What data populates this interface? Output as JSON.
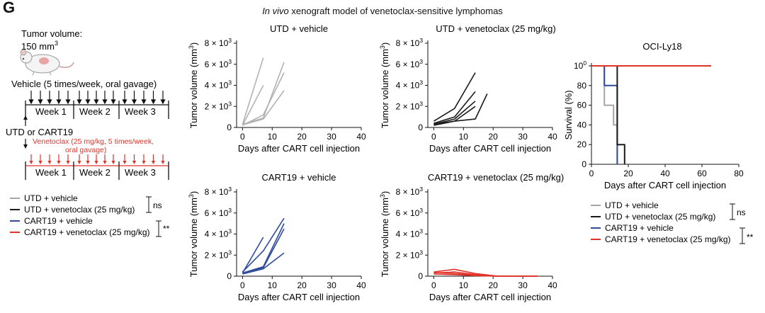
{
  "figure": {
    "panel_letter": "G",
    "title_italic": "In vivo",
    "title_rest": " xenograft model of venetoclax-sensitive lymphomas"
  },
  "schematic": {
    "tumor_volume_label": "Tumor volume:",
    "tumor_volume_value": "150 mm",
    "tumor_volume_exp": "3",
    "vehicle_label": "Vehicle (5 times/week, oral gavage)",
    "weeks": [
      "Week 1",
      "Week 2",
      "Week 3"
    ],
    "injection_label": "UTD or CART19",
    "venetoclax_label_1": "Venetoclax (25 mg/kg, 5 times/week,",
    "venetoclax_label_2": "oral gavage)"
  },
  "legend": {
    "items": [
      {
        "label": "UTD + vehicle",
        "color": "#a6a6a6"
      },
      {
        "label": "UTD + venetoclax (25 mg/kg)",
        "color": "#1a1a1a"
      },
      {
        "label": "CART19 + vehicle",
        "color": "#2f4b9a"
      },
      {
        "label": "CART19 + venetoclax (25 mg/kg)",
        "color": "#e0342a"
      }
    ],
    "sig_top": "ns",
    "sig_bottom": "**"
  },
  "chart_data": [
    {
      "type": "line",
      "title": "UTD + vehicle",
      "xlabel": "Days after CART cell injection",
      "ylabel": "Tumor volume (mm³)",
      "xlim": [
        -2,
        40
      ],
      "ylim": [
        0,
        8000
      ],
      "xticks": [
        "0",
        "10",
        "20",
        "30",
        "40"
      ],
      "yticks": [
        "0",
        "2 × 10³",
        "4 × 10³",
        "6 × 10³",
        "8 × 10³"
      ],
      "color": "#b3b3b3",
      "series": [
        {
          "x": [
            0,
            7,
            14
          ],
          "y": [
            300,
            900,
            6200
          ]
        },
        {
          "x": [
            0,
            7,
            14
          ],
          "y": [
            200,
            1200,
            5200
          ]
        },
        {
          "x": [
            0,
            7,
            14
          ],
          "y": [
            250,
            800,
            3500
          ]
        },
        {
          "x": [
            0,
            7
          ],
          "y": [
            300,
            6600
          ]
        },
        {
          "x": [
            0,
            7
          ],
          "y": [
            200,
            4000
          ]
        }
      ]
    },
    {
      "type": "line",
      "title": "UTD + venetoclax (25 mg/kg)",
      "xlabel": "Days after CART cell injection",
      "ylabel": "Tumor volume (mm³)",
      "xlim": [
        -2,
        40
      ],
      "ylim": [
        0,
        8000
      ],
      "xticks": [
        "0",
        "10",
        "20",
        "30",
        "40"
      ],
      "yticks": [
        "0",
        "2 × 10³",
        "4 × 10³",
        "6 × 10³",
        "8 × 10³"
      ],
      "color": "#1a1a1a",
      "series": [
        {
          "x": [
            0,
            7,
            14
          ],
          "y": [
            600,
            1800,
            5200
          ]
        },
        {
          "x": [
            0,
            7,
            14
          ],
          "y": [
            400,
            1000,
            3400
          ]
        },
        {
          "x": [
            0,
            7,
            14
          ],
          "y": [
            300,
            800,
            2500
          ]
        },
        {
          "x": [
            0,
            7,
            14
          ],
          "y": [
            200,
            600,
            2000
          ]
        },
        {
          "x": [
            0,
            7,
            14,
            18
          ],
          "y": [
            300,
            600,
            800,
            3200
          ]
        }
      ]
    },
    {
      "type": "line",
      "title": "CART19 + vehicle",
      "xlabel": "Days after CART cell injection",
      "ylabel": "Tumor volume (mm³)",
      "xlim": [
        -2,
        40
      ],
      "ylim": [
        0,
        8000
      ],
      "xticks": [
        "0",
        "10",
        "20",
        "30",
        "40"
      ],
      "yticks": [
        "0",
        "2 × 10³",
        "4 × 10³",
        "6 × 10³",
        "8 × 10³"
      ],
      "color": "#2f4b9a",
      "series": [
        {
          "x": [
            0,
            7,
            14
          ],
          "y": [
            400,
            2400,
            5500
          ]
        },
        {
          "x": [
            0,
            7,
            14
          ],
          "y": [
            300,
            900,
            5000
          ]
        },
        {
          "x": [
            0,
            7,
            14
          ],
          "y": [
            300,
            800,
            4500
          ]
        },
        {
          "x": [
            0,
            7,
            14
          ],
          "y": [
            200,
            700,
            2200
          ]
        },
        {
          "x": [
            0,
            7
          ],
          "y": [
            300,
            3700
          ]
        }
      ]
    },
    {
      "type": "line",
      "title": "CART19 + venetoclax (25 mg/kg)",
      "xlabel": "Days after CART cell injection",
      "ylabel": "Tumor volume (mm³)",
      "xlim": [
        -2,
        40
      ],
      "ylim": [
        0,
        8000
      ],
      "xticks": [
        "0",
        "10",
        "20",
        "30",
        "40"
      ],
      "yticks": [
        "0",
        "2 × 10³",
        "4 × 10³",
        "6 × 10³",
        "8 × 10³"
      ],
      "color": "#e0342a",
      "series": [
        {
          "x": [
            0,
            7,
            14,
            21,
            28,
            35
          ],
          "y": [
            400,
            650,
            250,
            20,
            0,
            0
          ]
        },
        {
          "x": [
            0,
            7,
            14,
            21,
            28,
            35
          ],
          "y": [
            300,
            400,
            150,
            0,
            0,
            0
          ]
        },
        {
          "x": [
            0,
            7,
            14,
            21,
            28,
            35
          ],
          "y": [
            350,
            250,
            100,
            0,
            0,
            0
          ]
        },
        {
          "x": [
            0,
            7,
            14,
            21,
            28,
            35
          ],
          "y": [
            200,
            150,
            50,
            0,
            0,
            0
          ]
        }
      ]
    },
    {
      "type": "line",
      "subtype": "survival",
      "title": "OCI-Ly18",
      "xlabel": "Days after CART cell injection",
      "ylabel": "Survival (%)",
      "xlim": [
        0,
        80
      ],
      "ylim": [
        0,
        100
      ],
      "xticks": [
        "0",
        "20",
        "40",
        "60",
        "80"
      ],
      "yticks": [
        "0",
        "20",
        "40",
        "60",
        "80",
        "100"
      ],
      "series": [
        {
          "name": "UTD + vehicle",
          "color": "#a6a6a6",
          "x": [
            0,
            7,
            7,
            12,
            12,
            14,
            14
          ],
          "y": [
            100,
            100,
            60,
            60,
            40,
            40,
            0
          ]
        },
        {
          "name": "CART19 + vehicle",
          "color": "#2f4b9a",
          "x": [
            0,
            7,
            7,
            14,
            14
          ],
          "y": [
            100,
            100,
            80,
            80,
            0
          ]
        },
        {
          "name": "UTD + venetoclax (25 mg/kg)",
          "color": "#1a1a1a",
          "x": [
            0,
            14,
            14,
            18,
            18
          ],
          "y": [
            100,
            100,
            20,
            20,
            0
          ]
        },
        {
          "name": "CART19 + venetoclax (25 mg/kg)",
          "color": "#e0342a",
          "x": [
            0,
            65
          ],
          "y": [
            100,
            100
          ]
        }
      ]
    }
  ]
}
